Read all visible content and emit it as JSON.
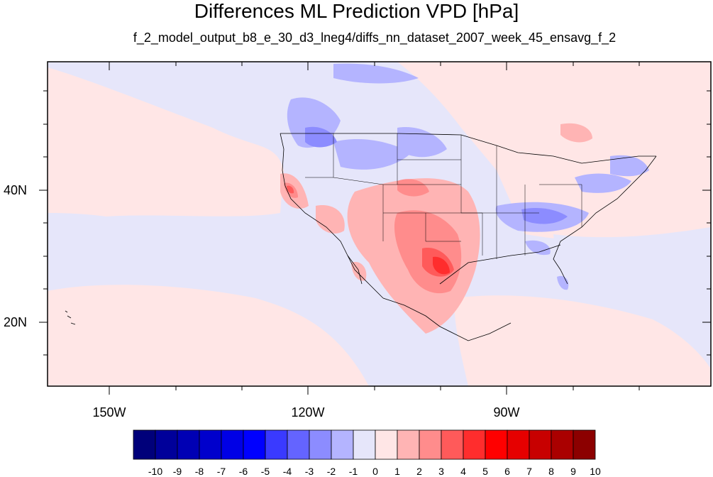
{
  "title": "Differences ML Prediction VPD [hPa]",
  "subtitle": "f_2_model_output_b8_e_30_d3_lneg4/diffs_nn_dataset_2007_week_45_ensavg_f_2",
  "axes": {
    "lon_labels": [
      "150W",
      "120W",
      "90W"
    ],
    "lat_labels": [
      "40N",
      "20N"
    ]
  },
  "colorbar": {
    "labels": [
      "-10",
      "-9",
      "-8",
      "-7",
      "-6",
      "-5",
      "-4",
      "-3",
      "-2",
      "-1",
      "0",
      "1",
      "2",
      "3",
      "4",
      "5",
      "6",
      "7",
      "8",
      "9",
      "10"
    ],
    "colors": [
      "#00007a",
      "#00009a",
      "#0000b4",
      "#0000cc",
      "#0000e6",
      "#0000ff",
      "#3a3aff",
      "#6464ff",
      "#8c8cff",
      "#b4b4ff",
      "#e6e6fa",
      "#ffe6e6",
      "#ffb4b4",
      "#ff8c8c",
      "#ff5a5a",
      "#ff2d2d",
      "#ff0000",
      "#e60000",
      "#c80000",
      "#aa0000",
      "#8c0000"
    ]
  }
}
